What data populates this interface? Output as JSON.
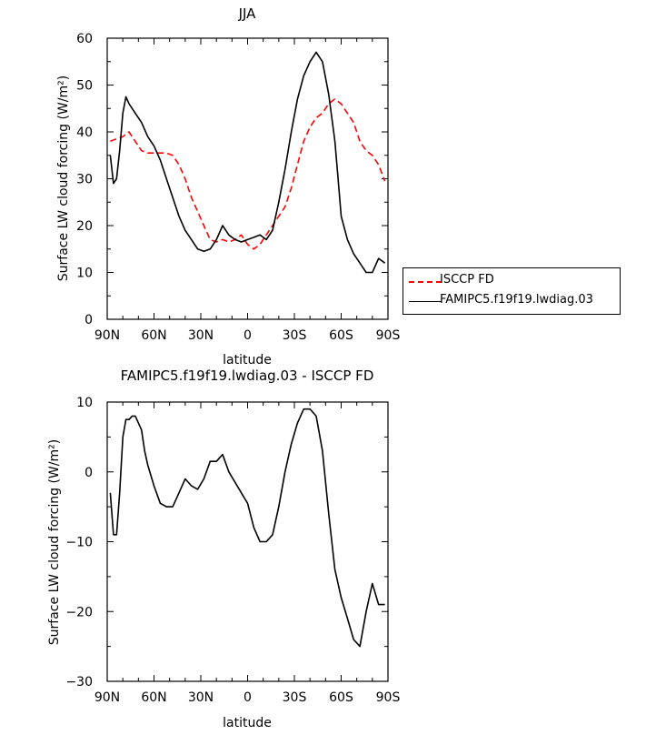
{
  "chart_data": [
    {
      "type": "line",
      "title": "JJA",
      "xlabel": "latitude",
      "ylabel": "Surface LW cloud forcing (W/m²)",
      "xlim": [
        90,
        -90
      ],
      "ylim": [
        0,
        60
      ],
      "xticks": [
        90,
        60,
        30,
        0,
        -30,
        -60,
        -90
      ],
      "xticklabels": [
        "90N",
        "60N",
        "30N",
        "0",
        "30S",
        "60S",
        "90S"
      ],
      "yticks": [
        0,
        10,
        20,
        30,
        40,
        50,
        60
      ],
      "legend_position": "right",
      "series": [
        {
          "name": "ISCCP FD",
          "color": "#ff0000",
          "dash": true,
          "x": [
            88,
            84,
            80,
            76,
            72,
            68,
            64,
            60,
            56,
            52,
            48,
            44,
            40,
            36,
            32,
            28,
            24,
            20,
            16,
            12,
            8,
            4,
            0,
            -4,
            -8,
            -12,
            -16,
            -20,
            -24,
            -28,
            -32,
            -36,
            -40,
            -44,
            -48,
            -52,
            -56,
            -60,
            -64,
            -68,
            -72,
            -76,
            -80,
            -84,
            -88
          ],
          "y": [
            38,
            38.5,
            39,
            40,
            38,
            36,
            35.5,
            35.5,
            35.5,
            35.5,
            35,
            33,
            30,
            26,
            23,
            20,
            17,
            16.5,
            17,
            16.5,
            17,
            18,
            16,
            15,
            16,
            18,
            20,
            22,
            24,
            28,
            33,
            38,
            41,
            43,
            44,
            46,
            47,
            46,
            44,
            42,
            38,
            36,
            35,
            33,
            29.5
          ]
        },
        {
          "name": "FAMIPC5.f19f19.lwdiag.03",
          "color": "#000000",
          "dash": false,
          "x": [
            88,
            86,
            84,
            82,
            80,
            78,
            76,
            72,
            68,
            64,
            60,
            56,
            52,
            48,
            44,
            40,
            36,
            32,
            28,
            24,
            20,
            16,
            12,
            8,
            4,
            0,
            -4,
            -8,
            -12,
            -16,
            -20,
            -24,
            -28,
            -32,
            -36,
            -40,
            -44,
            -48,
            -52,
            -56,
            -58,
            -60,
            -64,
            -68,
            -72,
            -76,
            -80,
            -84,
            -88
          ],
          "y": [
            35,
            29,
            30,
            36,
            44,
            47.5,
            46,
            44,
            42,
            39,
            37,
            34,
            30,
            26,
            22,
            19,
            17,
            15,
            14.5,
            15,
            17,
            20,
            18,
            17,
            16.5,
            17,
            17.5,
            18,
            17,
            19,
            25,
            32,
            40,
            47,
            52,
            55,
            57,
            55,
            48,
            38,
            30,
            22,
            17,
            14,
            12,
            10,
            10,
            13,
            12
          ]
        }
      ]
    },
    {
      "type": "line",
      "title": "FAMIPC5.f19f19.lwdiag.03 - ISCCP FD",
      "xlabel": "latitude",
      "ylabel": "Surface LW cloud forcing (W/m²)",
      "xlim": [
        90,
        -90
      ],
      "ylim": [
        -30,
        10
      ],
      "xticks": [
        90,
        60,
        30,
        0,
        -30,
        -60,
        -90
      ],
      "xticklabels": [
        "90N",
        "60N",
        "30N",
        "0",
        "30S",
        "60S",
        "90S"
      ],
      "yticks": [
        -30,
        -20,
        -10,
        0,
        10
      ],
      "series": [
        {
          "color": "#000000",
          "dash": false,
          "x": [
            88,
            86,
            84,
            82,
            80,
            78,
            76,
            74,
            72,
            68,
            66,
            64,
            60,
            56,
            52,
            48,
            44,
            40,
            36,
            32,
            28,
            24,
            20,
            16,
            12,
            8,
            4,
            0,
            -4,
            -8,
            -12,
            -16,
            -20,
            -24,
            -28,
            -32,
            -36,
            -40,
            -44,
            -48,
            -52,
            -56,
            -60,
            -64,
            -68,
            -72,
            -76,
            -80,
            -84,
            -88
          ],
          "y": [
            -3,
            -9,
            -9,
            -3,
            5,
            7.5,
            7.5,
            8,
            8,
            6,
            3,
            1,
            -2,
            -4.5,
            -5,
            -5,
            -3,
            -1,
            -2,
            -2.5,
            -1,
            1.5,
            1.5,
            2.5,
            0,
            -1.5,
            -3,
            -4.5,
            -8,
            -10,
            -10,
            -9,
            -5,
            0,
            4,
            7,
            9,
            9,
            8,
            3,
            -6,
            -14,
            -18,
            -21,
            -24,
            -25,
            -20,
            -16,
            -19,
            -19
          ]
        }
      ]
    }
  ]
}
